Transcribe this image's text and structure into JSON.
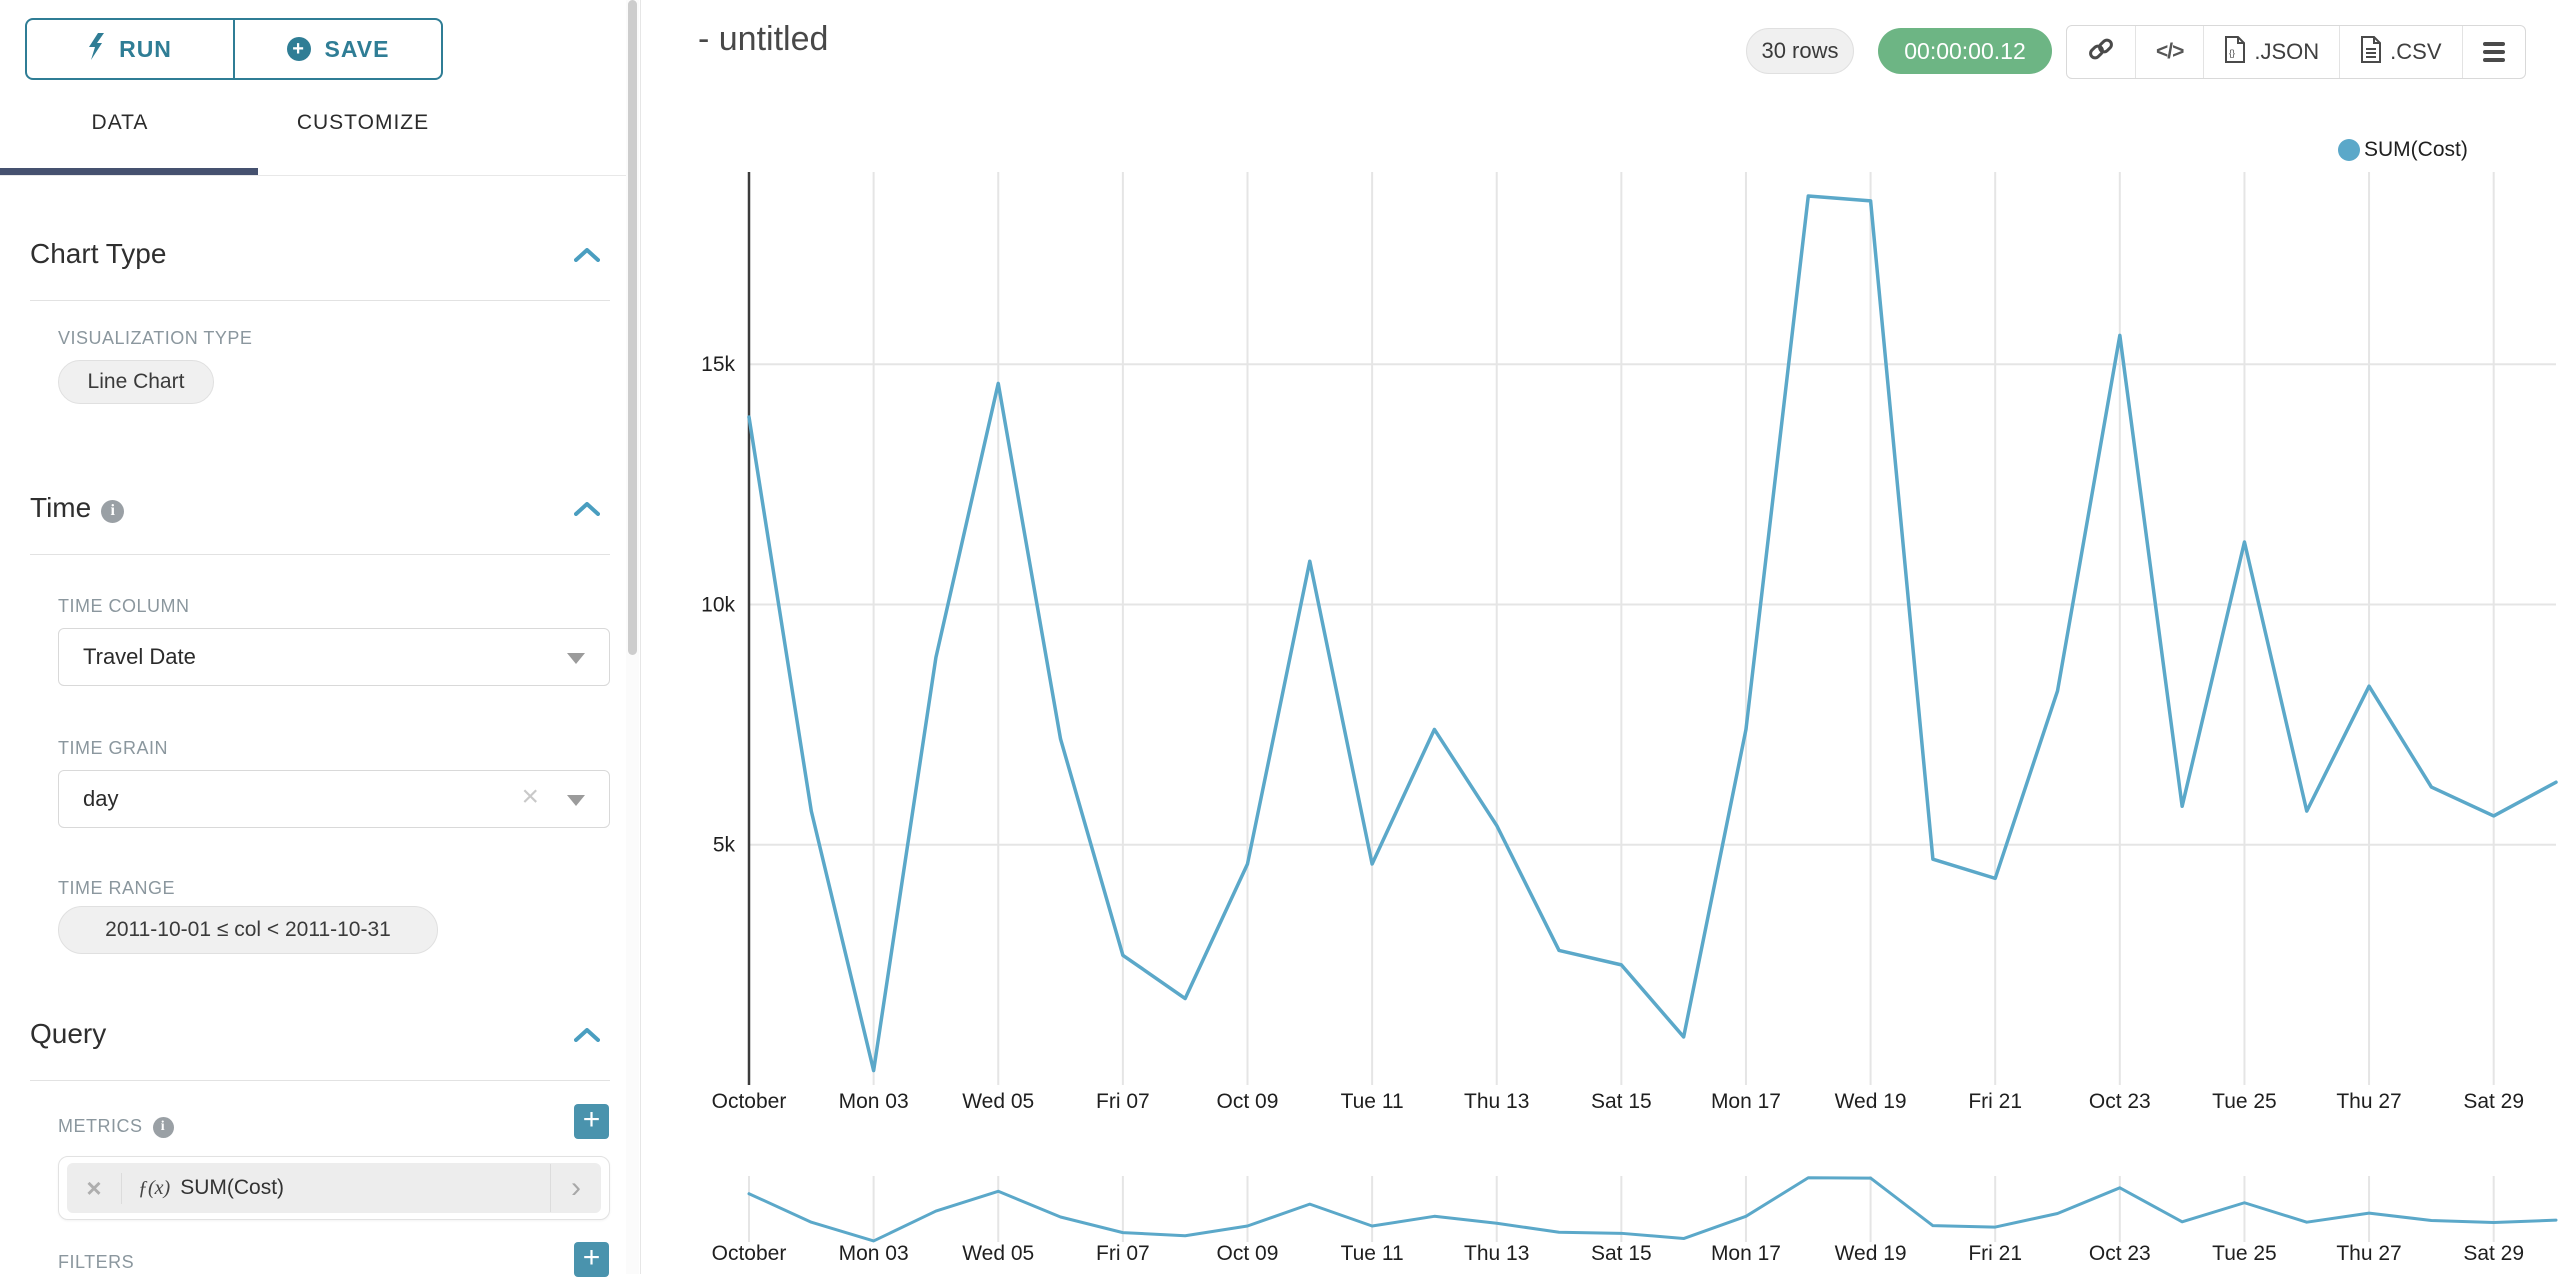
{
  "panel": {
    "run_label": "RUN",
    "save_label": "SAVE",
    "tabs": [
      {
        "label": "DATA",
        "active": true
      },
      {
        "label": "CUSTOMIZE",
        "active": false
      }
    ],
    "chart_type_section": {
      "title": "Chart Type",
      "viz_type_label": "VISUALIZATION TYPE",
      "viz_type_value": "Line Chart"
    },
    "time_section": {
      "title": "Time",
      "time_column_label": "TIME COLUMN",
      "time_column_value": "Travel Date",
      "time_grain_label": "TIME GRAIN",
      "time_grain_value": "day",
      "time_range_label": "TIME RANGE",
      "time_range_value": "2011-10-01 ≤ col < 2011-10-31"
    },
    "query_section": {
      "title": "Query",
      "metrics_label": "METRICS",
      "metric_fx": "ƒ(x)",
      "metric_value": "SUM(Cost)",
      "filters_label": "FILTERS"
    }
  },
  "header": {
    "title": "- untitled",
    "rows_badge": "30 rows",
    "timer": "00:00:00.12",
    "json_label": ".JSON",
    "csv_label": ".CSV"
  },
  "legend": {
    "label": "SUM(Cost)"
  },
  "colors": {
    "accent": "#2f7d95",
    "line": "#5ba8c9",
    "green": "#6db584",
    "tab_underline": "#45516f",
    "plus_button": "#4a93ad",
    "gridline": "#e5e5e5",
    "axis_line": "#3c3c3c"
  },
  "chart_data": {
    "type": "line",
    "title": "- untitled",
    "legend_entries": [
      "SUM(Cost)"
    ],
    "legend_position": "top-right",
    "x": [
      "Oct 01",
      "Oct 02",
      "Oct 03",
      "Oct 04",
      "Oct 05",
      "Oct 06",
      "Oct 07",
      "Oct 08",
      "Oct 09",
      "Oct 10",
      "Oct 11",
      "Oct 12",
      "Oct 13",
      "Oct 14",
      "Oct 15",
      "Oct 16",
      "Oct 17",
      "Oct 18",
      "Oct 19",
      "Oct 20",
      "Oct 21",
      "Oct 22",
      "Oct 23",
      "Oct 24",
      "Oct 25",
      "Oct 26",
      "Oct 27",
      "Oct 28",
      "Oct 29",
      "Oct 30"
    ],
    "series": [
      {
        "name": "SUM(Cost)",
        "values": [
          13900,
          5700,
          300,
          8900,
          14600,
          7200,
          2700,
          1800,
          4600,
          10900,
          4600,
          7400,
          5400,
          2800,
          2500,
          1000,
          7400,
          18500,
          18400,
          4700,
          4300,
          8200,
          15600,
          5800,
          11300,
          5700,
          8300,
          6200,
          5600,
          6300
        ]
      }
    ],
    "x_tick_labels": [
      "October",
      "Mon 03",
      "Wed 05",
      "Fri 07",
      "Oct 09",
      "Tue 11",
      "Thu 13",
      "Sat 15",
      "Mon 17",
      "Wed 19",
      "Fri 21",
      "Oct 23",
      "Tue 25",
      "Thu 27",
      "Sat 29"
    ],
    "x_tick_every": 2,
    "y_ticks": [
      5000,
      10000,
      15000
    ],
    "y_tick_labels": [
      "5k",
      "10k",
      "15k"
    ],
    "ylim": [
      0,
      19000
    ],
    "grid": true,
    "has_context_brush_chart": true
  }
}
